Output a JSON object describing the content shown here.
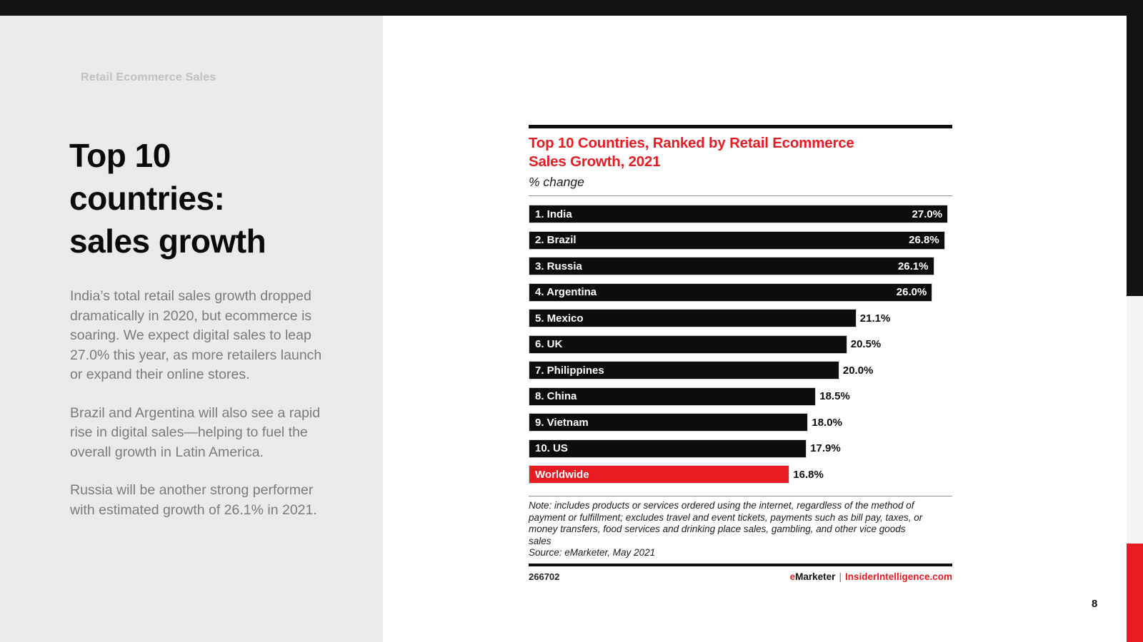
{
  "sidebar": {
    "eyebrow": "Retail Ecommerce Sales",
    "title_lines": [
      "Top 10",
      "countries:",
      "sales growth"
    ],
    "paragraphs": [
      "India’s total retail sales growth dropped dramatically in 2020, but ecommerce is soaring. We expect digital sales to leap 27.0% this year, as more retailers launch or expand their online stores.",
      "Brazil and Argentina will also see a rapid rise in digital sales—helping to fuel the overall growth in Latin America.",
      "Russia will be another strong performer with estimated growth of 26.1% in 2021."
    ]
  },
  "chart": {
    "title_line1": "Top 10 Countries, Ranked by Retail Ecommerce",
    "title_line2": "Sales Growth, 2021",
    "subtitle": "% change",
    "note_lines": [
      "Note: includes products or services ordered using the internet, regardless of the method of",
      "payment or fulfillment; excludes travel and event tickets, payments such as bill pay, taxes, or",
      "money transfers, food services and drinking place sales, gambling, and other vice goods",
      "sales",
      "Source: eMarketer, May 2021"
    ],
    "footer_id": "266702",
    "brand": {
      "e": "e",
      "rest": "Marketer",
      "divider": "|",
      "site": "InsiderIntelligence.com"
    }
  },
  "chart_data": {
    "type": "bar",
    "orientation": "horizontal",
    "title": "Top 10 Countries, Ranked by Retail Ecommerce Sales Growth, 2021",
    "xlabel": "% change",
    "ylabel": "",
    "xlim": [
      0,
      27.3
    ],
    "grid": false,
    "legend": "none",
    "categories": [
      "1. India",
      "2. Brazil",
      "3. Russia",
      "4. Argentina",
      "5. Mexico",
      "6. UK",
      "7. Philippines",
      "8. China",
      "9. Vietnam",
      "10. US",
      "Worldwide"
    ],
    "values": [
      27.0,
      26.8,
      26.1,
      26.0,
      21.1,
      20.5,
      20.0,
      18.5,
      18.0,
      17.9,
      16.8
    ],
    "note": "Note: includes products or services ordered using the internet, regardless of the method of payment or fulfillment; excludes travel and event tickets, payments such as bill pay, taxes, or money transfers, food services and drinking place sales, gambling, and other vice goods sales",
    "source": "Source: eMarketer, May 2021",
    "rows": [
      {
        "label": "1. India",
        "value": 27.0,
        "display": "27.0%",
        "value_inside": true,
        "color": "#0d0d0d"
      },
      {
        "label": "2. Brazil",
        "value": 26.8,
        "display": "26.8%",
        "value_inside": true,
        "color": "#0d0d0d"
      },
      {
        "label": "3. Russia",
        "value": 26.1,
        "display": "26.1%",
        "value_inside": true,
        "color": "#0d0d0d"
      },
      {
        "label": "4. Argentina",
        "value": 26.0,
        "display": "26.0%",
        "value_inside": true,
        "color": "#0d0d0d"
      },
      {
        "label": "5. Mexico",
        "value": 21.1,
        "display": "21.1%",
        "value_inside": false,
        "color": "#0d0d0d"
      },
      {
        "label": "6. UK",
        "value": 20.5,
        "display": "20.5%",
        "value_inside": false,
        "color": "#0d0d0d"
      },
      {
        "label": "7. Philippines",
        "value": 20.0,
        "display": "20.0%",
        "value_inside": false,
        "color": "#0d0d0d"
      },
      {
        "label": "8. China",
        "value": 18.5,
        "display": "18.5%",
        "value_inside": false,
        "color": "#0d0d0d"
      },
      {
        "label": "9. Vietnam",
        "value": 18.0,
        "display": "18.0%",
        "value_inside": false,
        "color": "#0d0d0d"
      },
      {
        "label": "10. US",
        "value": 17.9,
        "display": "17.9%",
        "value_inside": false,
        "color": "#0d0d0d"
      },
      {
        "label": "Worldwide",
        "value": 16.8,
        "display": "16.8%",
        "value_inside": false,
        "color": "#e81b22"
      }
    ]
  },
  "page": {
    "number": "8"
  },
  "colors": {
    "accent_red": "#e81b22",
    "bar_black": "#0d0d0d",
    "panel_gray": "#eaeaea",
    "strip_gray": "#f4f4f4",
    "top_bar_black": "#131313",
    "body_text_gray": "#7b7b7b",
    "eyebrow_gray": "#c0c0c0"
  }
}
